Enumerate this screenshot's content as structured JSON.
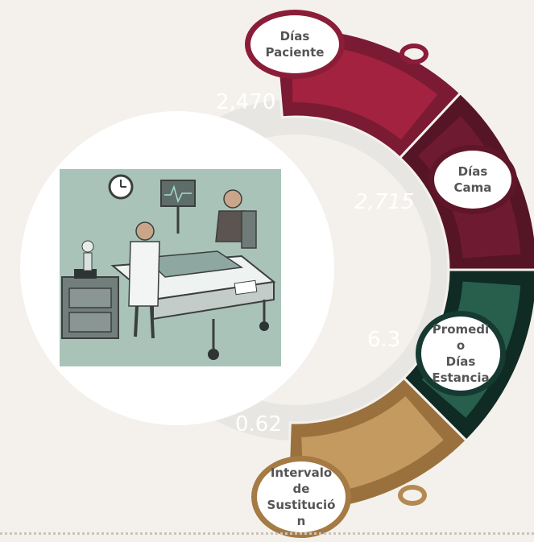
{
  "colors": {
    "background": "#f4f1ec",
    "ring_band": "#e8e6e3",
    "inner_disc": "#ffffff",
    "image_backdrop": "#dcdcdc",
    "image_bg": "#a9c3b9",
    "text_dark": "#555555"
  },
  "segments": [
    {
      "name": "dias-paciente",
      "label": "Días\nPaciente",
      "value": "2,470",
      "colors": {
        "outer": "#7a1b33",
        "inner": "#a3223f",
        "bubble_border": "#8b1d38"
      }
    },
    {
      "name": "dias-cama",
      "label": "Días\nCama",
      "value": "2,715",
      "colors": {
        "outer": "#561526",
        "inner": "#6e1b31",
        "bubble_border": "#5f1628"
      }
    },
    {
      "name": "promedio-dias-estancia",
      "label": "Promedi\no\nDías\nEstancia",
      "value": "6.3",
      "colors": {
        "outer": "#0f2b24",
        "inner": "#275e4c",
        "bubble_border": "#163a31"
      }
    },
    {
      "name": "intervalo-de-sustitucion",
      "label": "Intervalo\nde\nSustitució\nn",
      "value": "0.62",
      "colors": {
        "outer": "#9a713d",
        "inner": "#c49a60",
        "bubble_border": "#a57a44"
      }
    }
  ],
  "decor_rings": [
    {
      "name": "ring-top",
      "color": "#8b1d38"
    },
    {
      "name": "ring-bottom",
      "color": "#b58a52"
    }
  ]
}
